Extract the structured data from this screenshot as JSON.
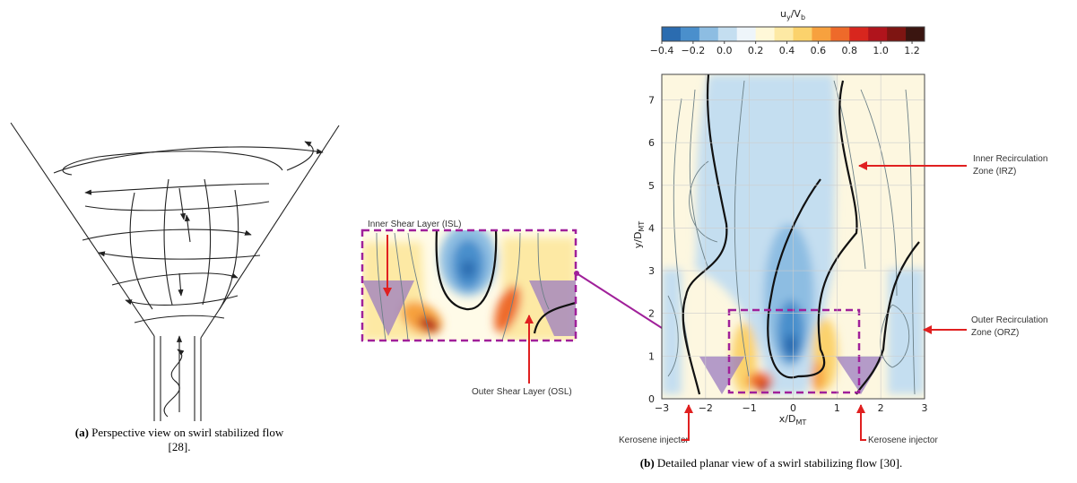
{
  "figure_a": {
    "caption": {
      "label": "(a)",
      "lines": [
        "Perspective view on swirl stabilized flow",
        "[28]."
      ]
    }
  },
  "figure_b": {
    "caption": {
      "label": "(b)",
      "text": "Detailed planar view of a swirl stabilizing flow [30]."
    },
    "colorbar": {
      "title": {
        "var": "u",
        "var_sub": "y",
        "ref": "/V",
        "ref_sub": "b"
      },
      "range": [
        -0.4,
        1.28
      ],
      "colors": [
        "#2b6cb0",
        "#4a8fcc",
        "#8dbde2",
        "#c4def0",
        "#eef5fa",
        "#fff8d8",
        "#fde9a4",
        "#fbd26c",
        "#f7a13e",
        "#ee6a2a",
        "#d8261e",
        "#b0141c",
        "#7e1512",
        "#3a1510"
      ],
      "ticks": [
        {
          "value": -0.4,
          "label": "−0.4"
        },
        {
          "value": -0.2,
          "label": "−0.2"
        },
        {
          "value": 0,
          "label": "0.0"
        },
        {
          "value": 0.2,
          "label": "0.2"
        },
        {
          "value": 0.4,
          "label": "0.4"
        },
        {
          "value": 0.6,
          "label": "0.6"
        },
        {
          "value": 0.8,
          "label": "0.8"
        },
        {
          "value": 1,
          "label": "1.0"
        },
        {
          "value": 1.2,
          "label": "1.2"
        }
      ]
    },
    "plot": {
      "xlabel": {
        "text": "x/D",
        "sub": "MT"
      },
      "ylabel": {
        "text": "y/D",
        "sub": "MT"
      },
      "xlim": [
        -3,
        3
      ],
      "ylim": [
        0,
        7.6
      ],
      "xticks": [
        {
          "value": -3,
          "label": "−3"
        },
        {
          "value": -2,
          "label": "−2"
        },
        {
          "value": -1,
          "label": "−1"
        },
        0,
        1,
        2,
        3
      ],
      "yticks": [
        0,
        1,
        2,
        3,
        4,
        5,
        6,
        7
      ]
    },
    "annotations": {
      "isl": "Inner Shear Layer (ISL)",
      "osl": "Outer Shear Layer (OSL)",
      "irz": [
        "Inner Recirculation",
        "Zone (IRZ)"
      ],
      "orz": [
        "Outer Recirculation",
        "Zone (ORZ)"
      ],
      "injector_left": "Kerosene injector",
      "injector_right": "Kerosene injector"
    }
  }
}
